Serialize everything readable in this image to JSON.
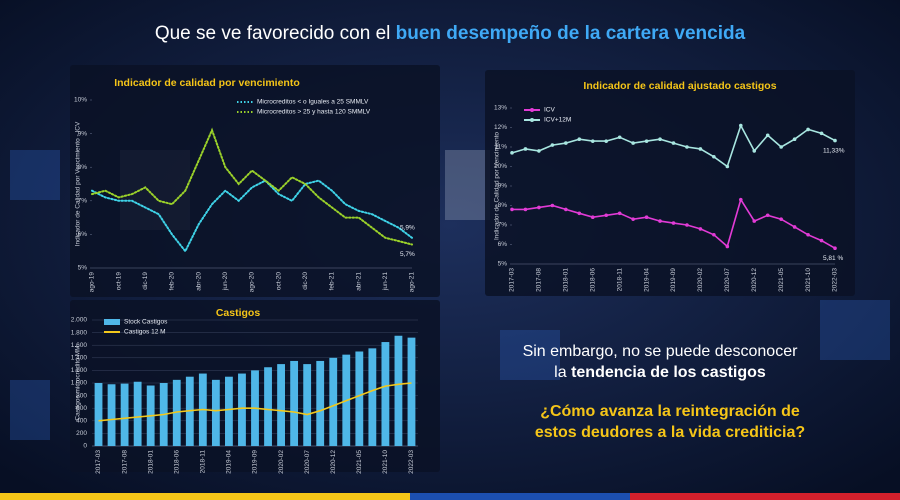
{
  "header": {
    "plain": "Que se ve favorecido con el ",
    "highlight": "buen desempeño de la cartera vencida"
  },
  "side_text": {
    "line1": "Sin embargo, no se puede desconocer",
    "line2_plain": "la ",
    "line2_bold": "tendencia de los castigos",
    "question1": "¿Cómo avanza la reintegración de",
    "question2": "estos deudores a la vida crediticia?"
  },
  "chart_data": [
    {
      "type": "line",
      "title": "Indicador de calidad por vencimiento",
      "y_label": "Indicador de Calidad por Vencimiento - ICV",
      "line_style": "dotted",
      "legend": "top-right",
      "grid": false,
      "categories": [
        "ago-19",
        null,
        "oct-19",
        null,
        "dic-19",
        null,
        "feb-20",
        null,
        "abr-20",
        null,
        "jun-20",
        null,
        "ago-20",
        null,
        "oct-20",
        null,
        "dic-20",
        null,
        "feb-21",
        null,
        "abr-21",
        null,
        "jun-21",
        null,
        "ago-21"
      ],
      "ylim": [
        5,
        10
      ],
      "yticks": [
        {
          "value": 5,
          "label": "5%"
        },
        {
          "value": 6,
          "label": "6%"
        },
        {
          "value": 7,
          "label": "7%"
        },
        {
          "value": 8,
          "label": "8%"
        },
        {
          "value": 9,
          "label": "9%"
        },
        {
          "value": 10,
          "label": "10%"
        }
      ],
      "series": [
        {
          "name": "Microcreditos < o Iguales a 25 SMMLV",
          "color": "#3fd3e8",
          "values": [
            7.3,
            7.1,
            7.0,
            7.0,
            6.8,
            6.6,
            6.0,
            5.5,
            6.3,
            6.9,
            7.3,
            7.0,
            7.4,
            7.6,
            7.2,
            7.0,
            7.5,
            7.6,
            7.3,
            6.9,
            6.7,
            6.6,
            6.4,
            6.2,
            5.9
          ],
          "value_labels": [
            null,
            null,
            null,
            null,
            null,
            null,
            null,
            null,
            null,
            null,
            null,
            null,
            null,
            null,
            null,
            null,
            null,
            null,
            null,
            null,
            null,
            null,
            null,
            null,
            "5,9%"
          ]
        },
        {
          "name": "Microcreditos > 25  y hasta 120 SMMLV",
          "color": "#9bd22a",
          "values": [
            7.2,
            7.3,
            7.1,
            7.2,
            7.4,
            7.0,
            6.9,
            7.3,
            8.2,
            9.1,
            8.0,
            7.5,
            7.9,
            7.6,
            7.3,
            7.7,
            7.5,
            7.1,
            6.8,
            6.5,
            6.5,
            6.2,
            5.9,
            5.8,
            5.7
          ],
          "value_labels": [
            null,
            null,
            null,
            null,
            null,
            null,
            null,
            null,
            null,
            null,
            null,
            null,
            null,
            null,
            null,
            null,
            null,
            null,
            null,
            null,
            null,
            null,
            null,
            null,
            "5,7%"
          ]
        }
      ]
    },
    {
      "type": "line",
      "title": "Indicador de calidad ajustado castigos",
      "y_label": "Indicador de Calidad por Vencimiento",
      "line_style": "markers",
      "legend": "top-left",
      "grid": false,
      "categories": [
        "2017-03",
        null,
        "2017-08",
        null,
        "2018-01",
        null,
        "2018-06",
        null,
        "2018-11",
        null,
        "2019-04",
        null,
        "2019-09",
        null,
        "2020-02",
        null,
        "2020-07",
        null,
        "2020-12",
        null,
        "2021-05",
        null,
        "2021-10",
        null,
        "2022-03"
      ],
      "ylim": [
        5,
        13
      ],
      "yticks": [
        {
          "value": 5,
          "label": "5%"
        },
        {
          "value": 6,
          "label": "6%"
        },
        {
          "value": 7,
          "label": "7%"
        },
        {
          "value": 8,
          "label": "8%"
        },
        {
          "value": 9,
          "label": "9%"
        },
        {
          "value": 10,
          "label": "10%"
        },
        {
          "value": 11,
          "label": "11%"
        },
        {
          "value": 12,
          "label": "12%"
        },
        {
          "value": 13,
          "label": "13%"
        }
      ],
      "series": [
        {
          "name": "ICV",
          "color": "#e23bd6",
          "values": [
            7.8,
            7.8,
            7.9,
            8.0,
            7.8,
            7.6,
            7.4,
            7.5,
            7.6,
            7.3,
            7.4,
            7.2,
            7.1,
            7.0,
            6.8,
            6.5,
            5.9,
            8.3,
            7.2,
            7.5,
            7.3,
            6.9,
            6.5,
            6.2,
            5.81
          ],
          "value_labels": [
            null,
            null,
            null,
            null,
            null,
            null,
            null,
            null,
            null,
            null,
            null,
            null,
            null,
            null,
            null,
            null,
            null,
            null,
            null,
            null,
            null,
            null,
            null,
            null,
            "5,81 %"
          ]
        },
        {
          "name": "ICV+12M",
          "color": "#a8e6e0",
          "values": [
            10.7,
            10.9,
            10.8,
            11.1,
            11.2,
            11.4,
            11.3,
            11.3,
            11.5,
            11.2,
            11.3,
            11.4,
            11.2,
            11.0,
            10.9,
            10.5,
            10.0,
            12.1,
            10.8,
            11.6,
            11.0,
            11.4,
            11.9,
            11.7,
            11.33
          ],
          "value_labels": [
            null,
            null,
            null,
            null,
            null,
            null,
            null,
            null,
            null,
            null,
            null,
            null,
            null,
            null,
            null,
            null,
            null,
            null,
            null,
            null,
            null,
            null,
            null,
            null,
            "11,33%"
          ]
        }
      ]
    },
    {
      "type": "combo",
      "title": "Castigos",
      "y_label": "Castigos microcrédito MM",
      "line_style": "solid",
      "legend": "top-left",
      "grid": true,
      "categories": [
        "2017-03",
        null,
        "2017-08",
        null,
        "2018-01",
        null,
        "2018-06",
        null,
        "2018-11",
        null,
        "2019-04",
        null,
        "2019-09",
        null,
        "2020-02",
        null,
        "2020-07",
        null,
        "2020-12",
        null,
        "2021-05",
        null,
        "2021-10",
        null,
        "2022-03"
      ],
      "ylim": [
        0,
        2000
      ],
      "yticks": [
        0,
        200,
        400,
        600,
        800,
        {
          "value": 1000,
          "label": "1.000"
        },
        {
          "value": 1200,
          "label": "1.200"
        },
        {
          "value": 1400,
          "label": "1.400"
        },
        {
          "value": 1600,
          "label": "1.600"
        },
        {
          "value": 1800,
          "label": "1.800"
        },
        {
          "value": 2000,
          "label": "2.000"
        }
      ],
      "series": [
        {
          "name": "Stock Castigos",
          "kind": "bar",
          "color": "#4fb7e8",
          "values": [
            1000,
            980,
            990,
            1020,
            960,
            1000,
            1050,
            1100,
            1150,
            1050,
            1100,
            1150,
            1200,
            1250,
            1300,
            1350,
            1300,
            1350,
            1400,
            1450,
            1500,
            1550,
            1650,
            1750,
            1720
          ]
        },
        {
          "name": "Castigos 12 M",
          "kind": "line",
          "color": "#f2c81c",
          "values": [
            400,
            420,
            440,
            460,
            480,
            500,
            540,
            560,
            580,
            560,
            580,
            600,
            600,
            580,
            560,
            540,
            500,
            560,
            640,
            720,
            800,
            880,
            950,
            980,
            1000
          ]
        }
      ]
    }
  ]
}
